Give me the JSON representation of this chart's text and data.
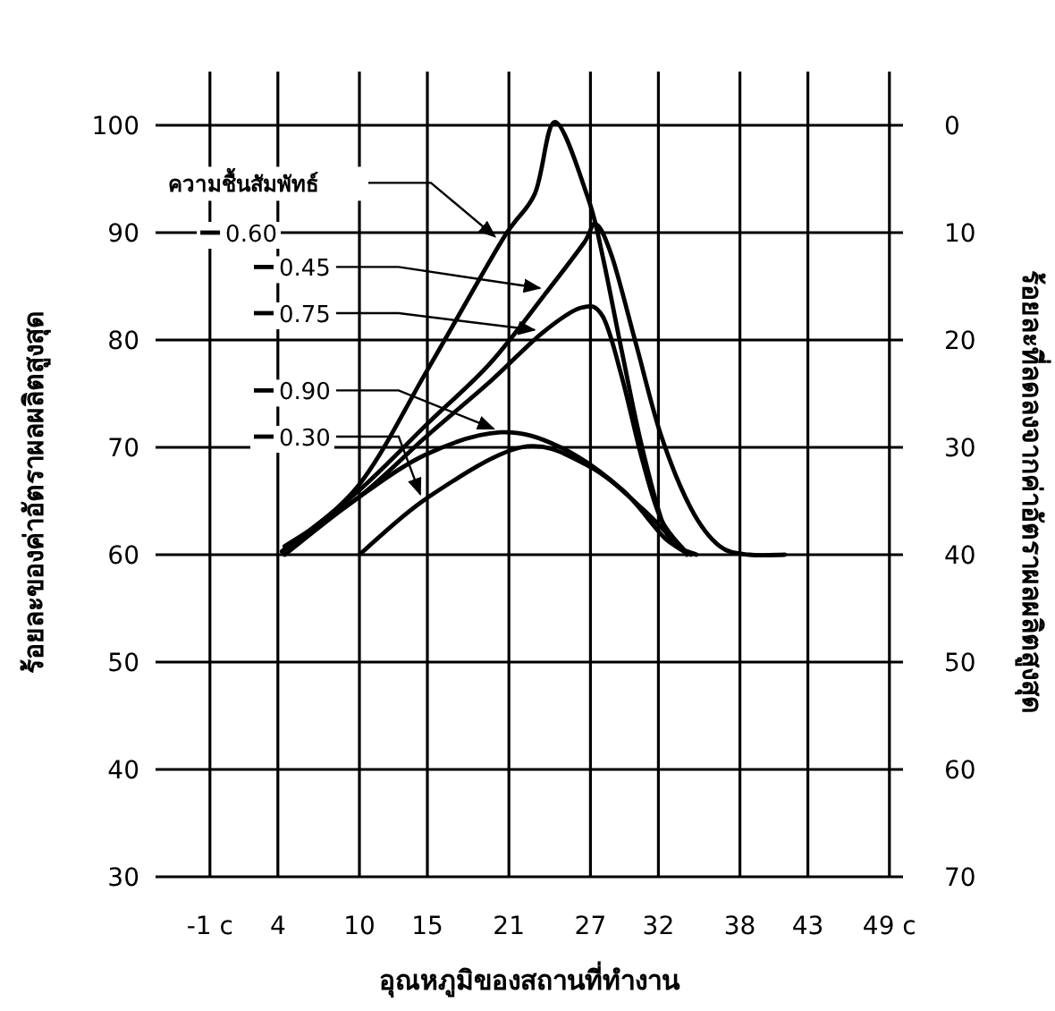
{
  "chart_data": {
    "type": "line",
    "xlabel": "อุณหภูมิของสถานที่ทำงาน",
    "ylabel": "ร้อยละของค่าอัตราผลผลิตสูงสุด",
    "y2label": "ร้อยละที่ลดลงจากค่าอัตราผลผลิตสูงสุด",
    "legend_title": "ความชื้นสัมพัทธ์",
    "xlim": [
      -5,
      50
    ],
    "xticks": [
      {
        "value": -1,
        "label": "-1 c"
      },
      4,
      10,
      15,
      21,
      27,
      32,
      38,
      43,
      {
        "value": 49,
        "label": "49 c"
      }
    ],
    "ylim": [
      30,
      105
    ],
    "yticks": [
      30,
      40,
      50,
      60,
      70,
      80,
      90,
      100
    ],
    "y2lim": [
      70,
      -5
    ],
    "y2ticks": [
      0,
      10,
      20,
      30,
      40,
      50,
      60,
      70
    ],
    "grid": true,
    "legend": "top left",
    "series": [
      {
        "name": "0.60",
        "color": "#000000",
        "x": [
          4.3,
          9.9,
          15,
          20.5,
          22.9,
          24.4,
          26.8,
          27.9,
          29.3,
          30.8,
          32.6,
          34.4
        ],
        "values": [
          60.3,
          66.4,
          77.2,
          89.3,
          93.6,
          100.3,
          93.3,
          87.8,
          79,
          70,
          62,
          60
        ]
      },
      {
        "name": "0.45",
        "color": "#000000",
        "x": [
          4.3,
          9.9,
          15,
          19.6,
          23.8,
          26.5,
          27.4,
          28.6,
          30.4,
          32.2,
          34.4,
          36.5,
          38.7,
          41.3
        ],
        "values": [
          60.3,
          65.9,
          72.2,
          77.8,
          84.5,
          89,
          90.8,
          87.7,
          79.4,
          71.1,
          64.3,
          60.8,
          60,
          60
        ]
      },
      {
        "name": "0.75",
        "color": "#000000",
        "x": [
          4.5,
          9.9,
          15,
          19.6,
          23.4,
          26.3,
          27.9,
          29.3,
          30.8,
          32.2,
          34
        ],
        "values": [
          60.8,
          65.3,
          71.1,
          76.1,
          80.6,
          83,
          82.2,
          76.6,
          68.9,
          63.3,
          60.3
        ]
      },
      {
        "name": "0.90",
        "color": "#000000",
        "x": [
          4.5,
          9.9,
          15,
          20.4,
          24.8,
          29.3,
          32.6,
          34.8
        ],
        "values": [
          60,
          65.3,
          69.4,
          71.4,
          70,
          66.1,
          61.4,
          60
        ]
      },
      {
        "name": "0.30",
        "color": "#000000",
        "x": [
          10,
          15,
          21.9,
          26.8,
          30.8,
          34.1
        ],
        "values": [
          60,
          65.3,
          70,
          68.3,
          64.3,
          60
        ]
      }
    ]
  }
}
